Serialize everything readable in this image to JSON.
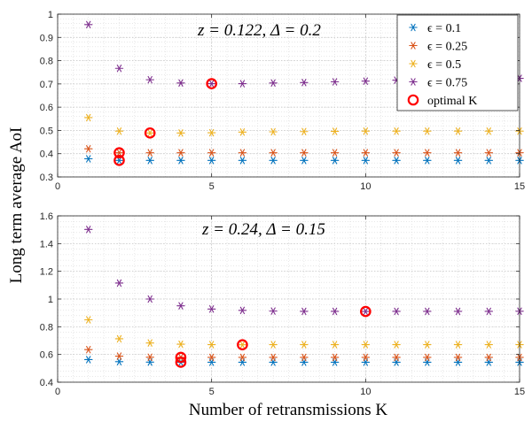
{
  "figure": {
    "ylabel": "Long term average AoI",
    "xlabel": "Number of retransmissions K"
  },
  "colors": {
    "eps_0.1": "#0072BD",
    "eps_0.25": "#D95319",
    "eps_0.5": "#EDB120",
    "eps_0.75": "#7E2F8E",
    "optimal": "#FF0000"
  },
  "legend": {
    "location": "top-right of upper panel",
    "entries": [
      {
        "key": "eps_0.1",
        "label": "ϵ = 0.1",
        "marker": "asterisk"
      },
      {
        "key": "eps_0.25",
        "label": "ϵ = 0.25",
        "marker": "asterisk"
      },
      {
        "key": "eps_0.5",
        "label": "ϵ = 0.5",
        "marker": "asterisk"
      },
      {
        "key": "eps_0.75",
        "label": "ϵ = 0.75",
        "marker": "asterisk"
      },
      {
        "key": "optimal",
        "label": "optimal K",
        "marker": "circle"
      }
    ]
  },
  "chart_data": [
    {
      "type": "scatter",
      "annotation": "z = 0.122, Δ = 0.2",
      "xlim": [
        0,
        15
      ],
      "ylim": [
        0.3,
        1.0
      ],
      "xticks": [
        0,
        5,
        10,
        15
      ],
      "yticks": [
        0.3,
        0.4,
        0.5,
        0.6,
        0.7,
        0.8,
        0.9,
        1.0
      ],
      "grid": true,
      "x": [
        1,
        2,
        3,
        4,
        5,
        6,
        7,
        8,
        9,
        10,
        11,
        12,
        13,
        14,
        15
      ],
      "series": [
        {
          "key": "eps_0.1",
          "name": "ϵ = 0.1",
          "values": [
            0.378,
            0.371,
            0.371,
            0.371,
            0.371,
            0.371,
            0.371,
            0.371,
            0.371,
            0.371,
            0.371,
            0.371,
            0.371,
            0.371,
            0.371
          ]
        },
        {
          "key": "eps_0.25",
          "name": "ϵ = 0.25",
          "values": [
            0.421,
            0.404,
            0.404,
            0.404,
            0.404,
            0.404,
            0.404,
            0.404,
            0.404,
            0.404,
            0.404,
            0.404,
            0.404,
            0.404,
            0.404
          ]
        },
        {
          "key": "eps_0.5",
          "name": "ϵ = 0.5",
          "values": [
            0.555,
            0.497,
            0.489,
            0.489,
            0.49,
            0.493,
            0.494,
            0.495,
            0.496,
            0.497,
            0.497,
            0.497,
            0.497,
            0.497,
            0.497
          ]
        },
        {
          "key": "eps_0.75",
          "name": "ϵ = 0.75",
          "values": [
            0.955,
            0.767,
            0.718,
            0.704,
            0.701,
            0.701,
            0.704,
            0.706,
            0.709,
            0.712,
            0.716,
            0.718,
            0.72,
            0.722,
            0.724
          ]
        }
      ],
      "optimal_points": [
        {
          "key": "eps_0.1",
          "x": 2,
          "y": 0.371
        },
        {
          "key": "eps_0.25",
          "x": 2,
          "y": 0.404
        },
        {
          "key": "eps_0.5",
          "x": 3,
          "y": 0.489
        },
        {
          "key": "eps_0.75",
          "x": 5,
          "y": 0.701
        }
      ]
    },
    {
      "type": "scatter",
      "annotation": "z = 0.24, Δ = 0.15",
      "xlim": [
        0,
        15
      ],
      "ylim": [
        0.4,
        1.6
      ],
      "xticks": [
        0,
        5,
        10,
        15
      ],
      "yticks": [
        0.4,
        0.6,
        0.8,
        1.0,
        1.2,
        1.4,
        1.6
      ],
      "grid": true,
      "x": [
        1,
        2,
        3,
        4,
        5,
        6,
        7,
        8,
        9,
        10,
        11,
        12,
        13,
        14,
        15
      ],
      "series": [
        {
          "key": "eps_0.1",
          "name": "ϵ = 0.1",
          "values": [
            0.563,
            0.548,
            0.545,
            0.544,
            0.544,
            0.544,
            0.544,
            0.544,
            0.544,
            0.544,
            0.544,
            0.544,
            0.544,
            0.544,
            0.544
          ]
        },
        {
          "key": "eps_0.25",
          "name": "ϵ = 0.25",
          "values": [
            0.635,
            0.588,
            0.58,
            0.579,
            0.579,
            0.579,
            0.579,
            0.579,
            0.579,
            0.579,
            0.579,
            0.579,
            0.579,
            0.579,
            0.579
          ]
        },
        {
          "key": "eps_0.5",
          "name": "ϵ = 0.5",
          "values": [
            0.85,
            0.713,
            0.683,
            0.674,
            0.671,
            0.67,
            0.671,
            0.671,
            0.671,
            0.671,
            0.671,
            0.671,
            0.671,
            0.671,
            0.671
          ]
        },
        {
          "key": "eps_0.75",
          "name": "ϵ = 0.75",
          "values": [
            1.502,
            1.115,
            1.0,
            0.951,
            0.928,
            0.918,
            0.913,
            0.911,
            0.911,
            0.91,
            0.911,
            0.911,
            0.911,
            0.911,
            0.912
          ]
        }
      ],
      "optimal_points": [
        {
          "key": "eps_0.1",
          "x": 4,
          "y": 0.544
        },
        {
          "key": "eps_0.25",
          "x": 4,
          "y": 0.579
        },
        {
          "key": "eps_0.5",
          "x": 6,
          "y": 0.67
        },
        {
          "key": "eps_0.75",
          "x": 10,
          "y": 0.91
        }
      ]
    }
  ]
}
